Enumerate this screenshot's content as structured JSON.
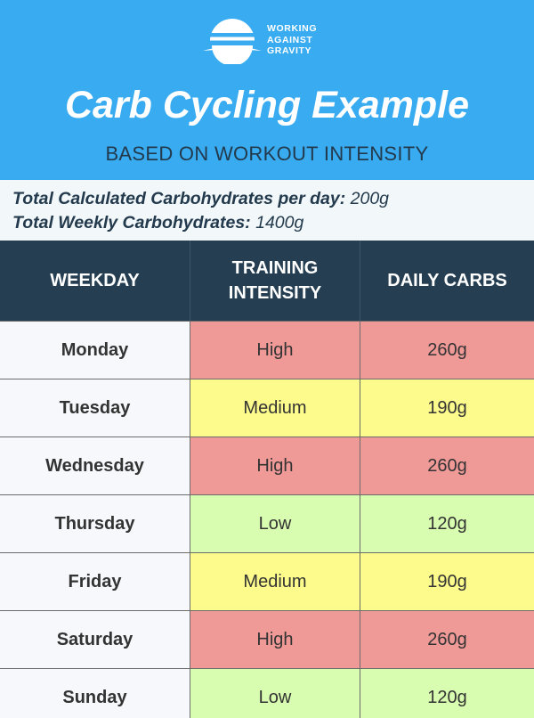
{
  "brand": {
    "line1": "WORKING",
    "line2": "AGAINST",
    "line3": "GRAVITY",
    "icon": "sunrise-logo-icon"
  },
  "title": "Carb Cycling Example",
  "subtitle": "BASED ON WORKOUT INTENSITY",
  "totals": {
    "daily_label": "Total Calculated Carbohydrates per day:",
    "daily_value": "200g",
    "weekly_label": "Total Weekly Carbohydrates:",
    "weekly_value": "1400g"
  },
  "table": {
    "headers": {
      "weekday": "WEEKDAY",
      "training_line1": "TRAINING",
      "training_line2": "INTENSITY",
      "carbs": "DAILY CARBS"
    },
    "rows": [
      {
        "day": "Monday",
        "intensity": "High",
        "carbs": "260g"
      },
      {
        "day": "Tuesday",
        "intensity": "Medium",
        "carbs": "190g"
      },
      {
        "day": "Wednesday",
        "intensity": "High",
        "carbs": "260g"
      },
      {
        "day": "Thursday",
        "intensity": "Low",
        "carbs": "120g"
      },
      {
        "day": "Friday",
        "intensity": "Medium",
        "carbs": "190g"
      },
      {
        "day": "Saturday",
        "intensity": "High",
        "carbs": "260g"
      },
      {
        "day": "Sunday",
        "intensity": "Low",
        "carbs": "120g"
      }
    ]
  },
  "colors": {
    "header_bg": "#38abf1",
    "table_head_bg": "#253e51",
    "high": "#f09a98",
    "medium": "#fcfb8c",
    "low": "#d8fcb0"
  }
}
